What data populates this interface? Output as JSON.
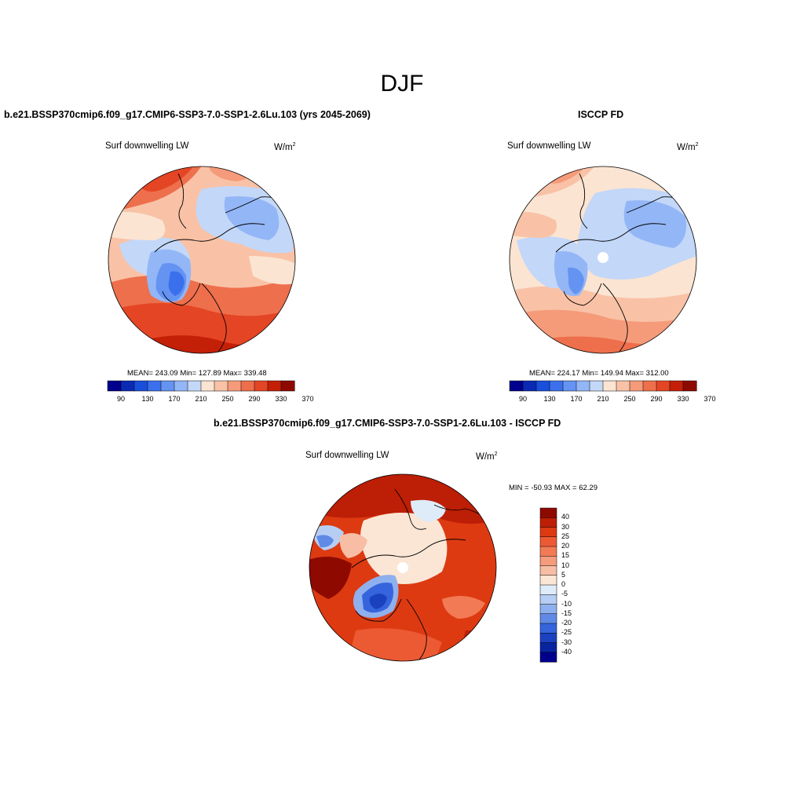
{
  "season": "DJF",
  "panels": {
    "model": {
      "title": "b.e21.BSSP370cmip6.f09_g17.CMIP6-SSP3-7.0-SSP1-2.6Lu.103 (yrs 2045-2069)",
      "variable": "Surf downwelling LW",
      "units_base": "W/m",
      "units_sup": "2",
      "stats": "MEAN= 243.09  Min= 127.89  Max= 339.48"
    },
    "obs": {
      "title": "ISCCP FD",
      "variable": "Surf downwelling LW",
      "units_base": "W/m",
      "units_sup": "2",
      "stats": "MEAN= 224.17  Min= 149.94  Max= 312.00"
    },
    "diff": {
      "title": "b.e21.BSSP370cmip6.f09_g17.CMIP6-SSP3-7.0-SSP1-2.6Lu.103 - ISCCP FD",
      "variable": "Surf downwelling LW",
      "units_base": "W/m",
      "units_sup": "2",
      "stats": "MIN = -50.93 MAX =  62.29"
    }
  },
  "colorbar_abs": {
    "labels": [
      "90",
      "130",
      "170",
      "210",
      "250",
      "290",
      "330",
      "370"
    ],
    "colors": [
      "#00008c",
      "#0a2ab4",
      "#1a4fdc",
      "#3b70ec",
      "#6593f2",
      "#93b6f6",
      "#c3d7f8",
      "#fbe4d2",
      "#f9c2a6",
      "#f59b7a",
      "#ee6f4c",
      "#e44524",
      "#c42008",
      "#8e0a00"
    ]
  },
  "colorbar_diff": {
    "labels": [
      "40",
      "30",
      "25",
      "20",
      "15",
      "10",
      "5",
      "0",
      "-5",
      "-10",
      "-15",
      "-20",
      "-25",
      "-30",
      "-40"
    ],
    "colors": [
      "#8e0a00",
      "#bd1e06",
      "#dd3a12",
      "#ec5a34",
      "#f27a55",
      "#f59c7e",
      "#f7bea5",
      "#fbe6d5",
      "#deebf8",
      "#b7cef4",
      "#8fb0ee",
      "#5f8ae6",
      "#3564dc",
      "#1a42c0",
      "#0824a0",
      "#00008c"
    ]
  },
  "colors": {
    "coast": "#000000",
    "pole_missing": "#ffffff"
  }
}
